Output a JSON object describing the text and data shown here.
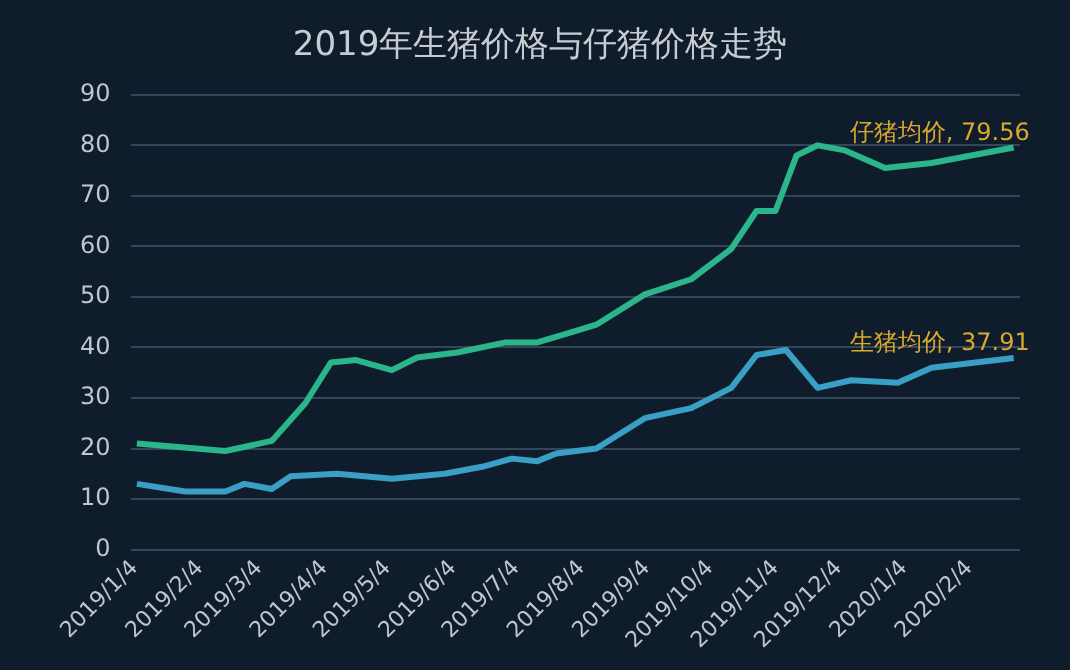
{
  "chart_data": {
    "type": "line",
    "title": "2019年生猪价格与仔猪价格走势",
    "xlim": [
      "2019-01-02",
      "2020-02-28"
    ],
    "xticks": [
      {
        "value": "2019-01-04",
        "label": "2019/1/4"
      },
      {
        "value": "2019-02-04",
        "label": "2019/2/4"
      },
      {
        "value": "2019-03-04",
        "label": "2019/3/4"
      },
      {
        "value": "2019-04-04",
        "label": "2019/4/4"
      },
      {
        "value": "2019-05-04",
        "label": "2019/5/4"
      },
      {
        "value": "2019-06-04",
        "label": "2019/6/4"
      },
      {
        "value": "2019-07-04",
        "label": "2019/7/4"
      },
      {
        "value": "2019-08-04",
        "label": "2019/8/4"
      },
      {
        "value": "2019-09-04",
        "label": "2019/9/4"
      },
      {
        "value": "2019-10-04",
        "label": "2019/10/4"
      },
      {
        "value": "2019-11-04",
        "label": "2019/11/4"
      },
      {
        "value": "2019-12-04",
        "label": "2019/12/4"
      },
      {
        "value": "2020-01-04",
        "label": "2020/1/4"
      },
      {
        "value": "2020-02-04",
        "label": "2020/2/4"
      }
    ],
    "ylim": [
      0,
      90
    ],
    "yticks": [
      0,
      10,
      20,
      30,
      40,
      50,
      60,
      70,
      80,
      90
    ],
    "grid": "y",
    "legend": false,
    "marker": "none",
    "line_style": "solid",
    "series": [
      {
        "color": "#2bb58a",
        "x": [
          "2019-01-05",
          "2019-02-16",
          "2019-03-10",
          "2019-03-26",
          "2019-04-07",
          "2019-04-19",
          "2019-05-06",
          "2019-05-18",
          "2019-06-06",
          "2019-06-29",
          "2019-07-14",
          "2019-07-30",
          "2019-08-11",
          "2019-09-03",
          "2019-09-25",
          "2019-10-14",
          "2019-10-26",
          "2019-11-04",
          "2019-11-14",
          "2019-11-24",
          "2019-12-07",
          "2019-12-26",
          "2020-01-17",
          "2020-02-25"
        ],
        "values": [
          21,
          19.5,
          21.5,
          29,
          37,
          37.5,
          35.5,
          38,
          39,
          41,
          41,
          43,
          44.5,
          50.5,
          53.5,
          59.5,
          67,
          67,
          78,
          80,
          79,
          75.5,
          76.5,
          79.56
        ]
      },
      {
        "color": "#3a9fc4",
        "x": [
          "2019-01-05",
          "2019-01-28",
          "2019-02-16",
          "2019-02-25",
          "2019-03-10",
          "2019-03-19",
          "2019-04-10",
          "2019-05-06",
          "2019-05-31",
          "2019-06-19",
          "2019-07-02",
          "2019-07-14",
          "2019-07-23",
          "2019-08-11",
          "2019-09-03",
          "2019-09-25",
          "2019-10-14",
          "2019-10-26",
          "2019-11-09",
          "2019-11-24",
          "2019-12-10",
          "2020-01-01",
          "2020-01-17",
          "2020-02-25"
        ],
        "values": [
          13,
          11.5,
          11.5,
          13,
          12,
          14.5,
          15,
          14,
          15,
          16.5,
          18,
          17.5,
          19,
          20,
          26,
          28,
          32,
          38.5,
          39.5,
          32,
          33.5,
          33,
          36,
          37.91
        ]
      }
    ],
    "annotations": [
      {
        "text": "仔猪均价, 79.56",
        "x": "2020-02-25",
        "y": 79.56
      },
      {
        "text": "生猪均价, 37.91",
        "x": "2020-02-25",
        "y": 37.91
      }
    ]
  }
}
